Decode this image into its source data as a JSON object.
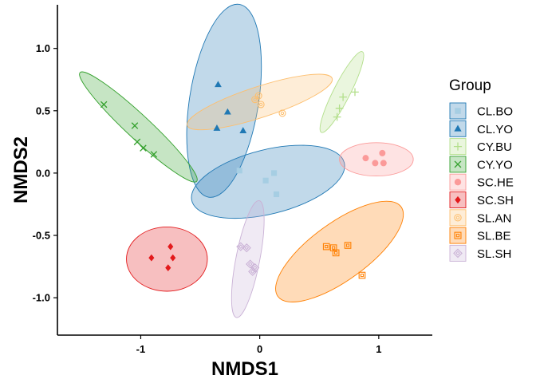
{
  "chart_data": {
    "type": "scatter",
    "xlabel": "NMDS1",
    "ylabel": "NMDS2",
    "xlim": [
      -1.7,
      1.45
    ],
    "ylim": [
      -1.3,
      1.35
    ],
    "xticks": [
      -1,
      0,
      1
    ],
    "yticks": [
      -1.0,
      -0.5,
      0.0,
      0.5,
      1.0
    ],
    "xtick_labels": [
      "-1",
      "0",
      "1"
    ],
    "ytick_labels": [
      "-1.0",
      "-0.5",
      "0.0",
      "0.5",
      "1.0"
    ],
    "grid": false,
    "legend": {
      "title": "Group",
      "position": "right"
    },
    "series": [
      {
        "name": "CL.BO",
        "color": "#a6cee3",
        "fill": "#1f78b4",
        "shape": "square",
        "points": [
          [
            -0.17,
            0.02
          ],
          [
            0.05,
            -0.06
          ],
          [
            0.12,
            0.0
          ],
          [
            0.14,
            -0.17
          ]
        ],
        "ellipse": {
          "cx": 0.07,
          "cy": -0.07,
          "rx": 0.66,
          "ry": 0.27,
          "angle": -14
        }
      },
      {
        "name": "CL.YO",
        "color": "#1f78b4",
        "fill": "#1f78b4",
        "shape": "triangle",
        "points": [
          [
            -0.35,
            0.71
          ],
          [
            -0.27,
            0.49
          ],
          [
            -0.36,
            0.36
          ],
          [
            -0.14,
            0.34
          ]
        ],
        "ellipse": {
          "cx": -0.3,
          "cy": 0.58,
          "rx": 0.82,
          "ry": 0.29,
          "angle": -81
        }
      },
      {
        "name": "CY.BU",
        "color": "#b2df8a",
        "fill": "#b2df8a",
        "shape": "plus",
        "points": [
          [
            0.65,
            0.45
          ],
          [
            0.67,
            0.52
          ],
          [
            0.7,
            0.61
          ],
          [
            0.8,
            0.65
          ]
        ],
        "ellipse": {
          "cx": 0.69,
          "cy": 0.65,
          "rx": 0.38,
          "ry": 0.07,
          "angle": -63
        }
      },
      {
        "name": "CY.YO",
        "color": "#33a02c",
        "fill": "#33a02c",
        "shape": "x",
        "points": [
          [
            -1.31,
            0.55
          ],
          [
            -1.05,
            0.38
          ],
          [
            -1.03,
            0.25
          ],
          [
            -0.98,
            0.2
          ],
          [
            -0.89,
            0.15
          ]
        ],
        "ellipse": {
          "cx": -1.02,
          "cy": 0.37,
          "rx": 0.67,
          "ry": 0.1,
          "angle": 43
        }
      },
      {
        "name": "SC.HE",
        "color": "#fb9a99",
        "fill": "#fb9a99",
        "shape": "circle",
        "points": [
          [
            0.89,
            0.12
          ],
          [
            0.97,
            0.08
          ],
          [
            1.03,
            0.16
          ],
          [
            1.04,
            0.08
          ]
        ],
        "ellipse": {
          "cx": 0.98,
          "cy": 0.11,
          "rx": 0.31,
          "ry": 0.14,
          "angle": 0
        }
      },
      {
        "name": "SC.SH",
        "color": "#e31a1c",
        "fill": "#e31a1c",
        "shape": "diamond",
        "points": [
          [
            -0.91,
            -0.68
          ],
          [
            -0.75,
            -0.59
          ],
          [
            -0.73,
            -0.68
          ],
          [
            -0.77,
            -0.76
          ]
        ],
        "ellipse": {
          "cx": -0.78,
          "cy": -0.69,
          "rx": 0.34,
          "ry": 0.27,
          "angle": 0
        }
      },
      {
        "name": "SL.AN",
        "color": "#fdbf6f",
        "fill": "#fdbf6f",
        "shape": "circle-open",
        "points": [
          [
            -0.04,
            0.59
          ],
          [
            -0.01,
            0.62
          ],
          [
            0.01,
            0.55
          ],
          [
            0.19,
            0.48
          ]
        ],
        "ellipse": {
          "cx": 0.0,
          "cy": 0.57,
          "rx": 0.64,
          "ry": 0.13,
          "angle": -18
        }
      },
      {
        "name": "SL.BE",
        "color": "#ff7f00",
        "fill": "#ff7f00",
        "shape": "square-open",
        "points": [
          [
            0.56,
            -0.59
          ],
          [
            0.62,
            -0.6
          ],
          [
            0.64,
            -0.64
          ],
          [
            0.74,
            -0.58
          ],
          [
            0.86,
            -0.82
          ]
        ],
        "ellipse": {
          "cx": 0.67,
          "cy": -0.63,
          "rx": 0.64,
          "ry": 0.24,
          "angle": -36
        }
      },
      {
        "name": "SL.SH",
        "color": "#cab2d6",
        "fill": "#cab2d6",
        "shape": "diamond-open",
        "points": [
          [
            -0.16,
            -0.59
          ],
          [
            -0.11,
            -0.6
          ],
          [
            -0.08,
            -0.73
          ],
          [
            -0.06,
            -0.79
          ],
          [
            -0.04,
            -0.76
          ]
        ],
        "ellipse": {
          "cx": -0.1,
          "cy": -0.69,
          "rx": 0.5,
          "ry": 0.1,
          "angle": -79
        }
      }
    ]
  }
}
